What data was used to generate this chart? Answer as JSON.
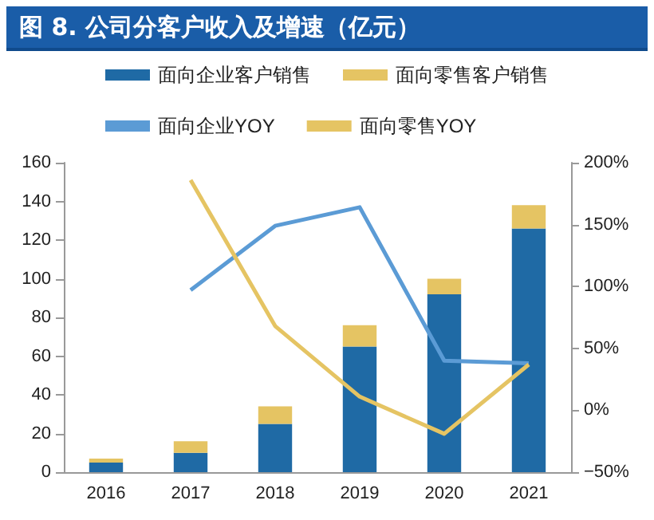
{
  "chart_data": {
    "type": "bar",
    "title": "图 8. 公司分客户收入及增速（亿元）",
    "categories": [
      "2016",
      "2017",
      "2018",
      "2019",
      "2020",
      "2021"
    ],
    "stacked": true,
    "series": [
      {
        "name": "面向企业客户销售",
        "color": "#1f6aa5",
        "values": [
          5,
          10,
          25,
          65,
          92,
          126
        ]
      },
      {
        "name": "面向零售客户销售",
        "color": "#e5c463",
        "values": [
          2,
          6,
          9,
          11,
          8,
          12
        ]
      },
      {
        "name": "面向企业YOY",
        "type": "line",
        "axis": "y2",
        "color": "#5b9bd5",
        "values": [
          null,
          97,
          149,
          164,
          40,
          38
        ]
      },
      {
        "name": "面向零售YOY",
        "type": "line",
        "axis": "y2",
        "color": "#e5c463",
        "values": [
          null,
          186,
          68,
          11,
          -19,
          37
        ]
      }
    ],
    "ylim": [
      0,
      160
    ],
    "yticks": [
      0,
      20,
      40,
      60,
      80,
      100,
      120,
      140,
      160
    ],
    "y2lim": [
      -50,
      200
    ],
    "y2ticks": [
      {
        "value": -50,
        "label": "−50%"
      },
      {
        "value": 0,
        "label": "0%"
      },
      {
        "value": 50,
        "label": "50%"
      },
      {
        "value": 100,
        "label": "100%"
      },
      {
        "value": 150,
        "label": "150%"
      },
      {
        "value": 200,
        "label": "200%"
      }
    ],
    "legend": "top",
    "grid": false,
    "marker": "none"
  }
}
